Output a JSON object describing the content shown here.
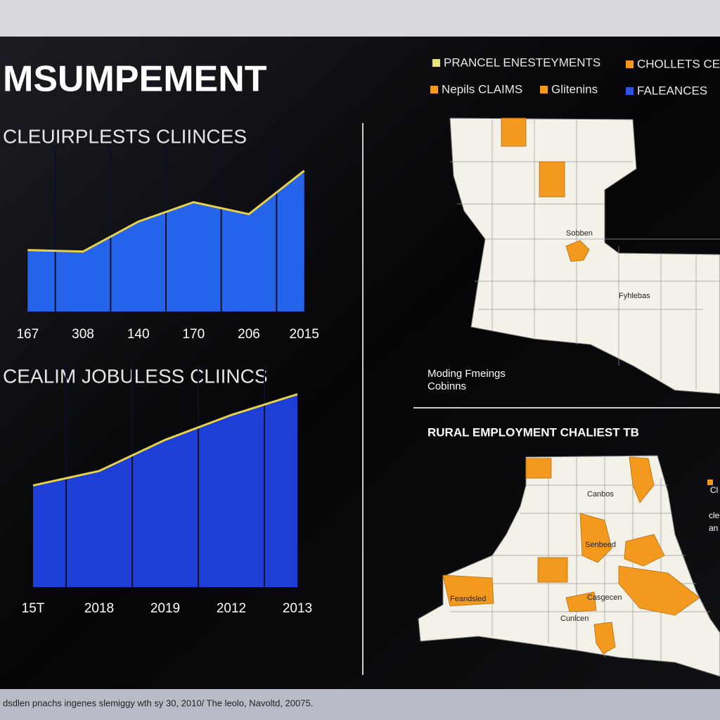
{
  "title": "MSUMPEMENT",
  "chart_data": [
    {
      "type": "area",
      "title": "CLEUIRPLESTS CLIINCES",
      "categories": [
        "167",
        "308",
        "140",
        "170",
        "206",
        "2015"
      ],
      "values": [
        41,
        40,
        60,
        73,
        65,
        94
      ],
      "ylim": [
        0,
        100
      ],
      "color": "#2563eb",
      "line_color": "#e6d34a"
    },
    {
      "type": "area",
      "title": "CEALIM JOBULESS CLIINCS",
      "categories": [
        "15T",
        "2018",
        "2019",
        "2012",
        "2013"
      ],
      "values": [
        49,
        56,
        71,
        83,
        93
      ],
      "ylim": [
        0,
        100
      ],
      "color": "#1d3fd6",
      "line_color": "#e6d34a"
    }
  ],
  "legend": [
    {
      "label": "PRANCEL ENESTEYMENTS",
      "color": "#ece27a"
    },
    {
      "label": "CHOLLETS CE",
      "color": "#f39a1e"
    },
    {
      "label": "Nepils CLAIMS",
      "color": "#f39a1e"
    },
    {
      "label": "Glitenins",
      "color": "#f39a1e"
    },
    {
      "label": "FALEANCES",
      "color": "#2f55e0"
    }
  ],
  "maps": [
    {
      "labels": [
        "Sobben",
        "Fyhlebas"
      ],
      "caption": [
        "Moding Fmeings",
        "Cobinns"
      ]
    },
    {
      "title": "RURAL EMPLOYMENT CHALIEST TB",
      "labels": [
        "Canbos",
        "Senbeed",
        "Casgecen",
        "Cunlcen",
        "Feandsled"
      ],
      "side_legend": [
        "Cl",
        "cle",
        "an"
      ]
    }
  ],
  "footer": "dsdlen pnachs ingenes slemiggy wth sy 30, 2010/ The leolo, Navoltd, 20075."
}
